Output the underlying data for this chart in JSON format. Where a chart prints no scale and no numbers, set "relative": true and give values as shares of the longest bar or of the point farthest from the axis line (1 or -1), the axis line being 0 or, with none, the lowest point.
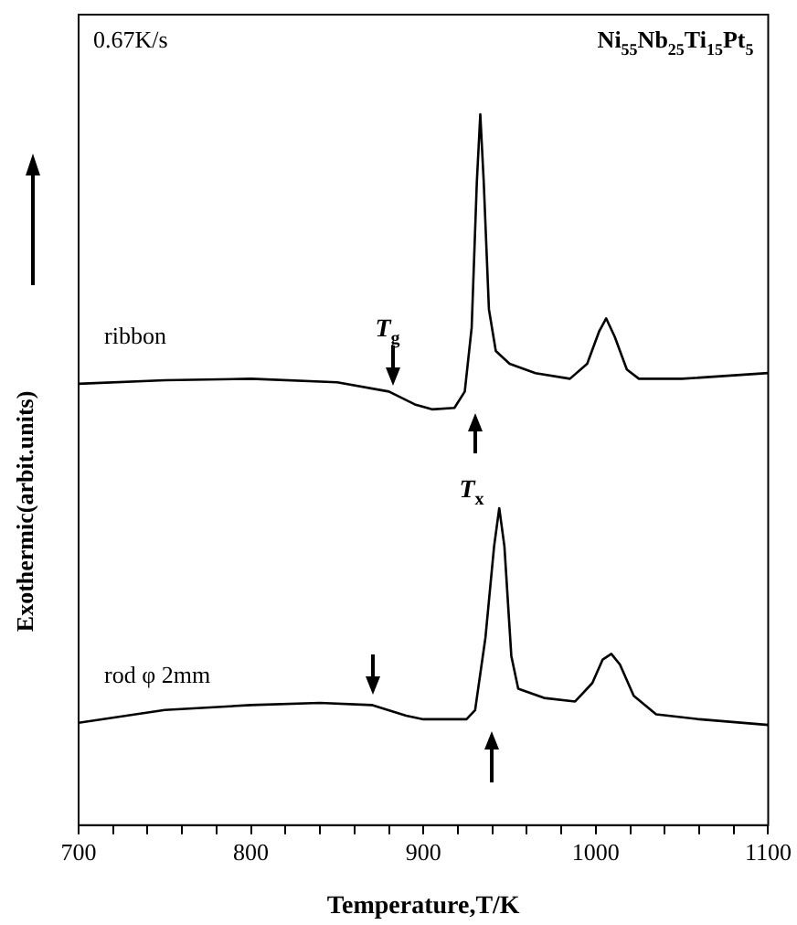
{
  "chart_data": {
    "type": "line",
    "title": "Ni$_{55}$Nb$_{25}$Ti$_{15}$Pt$_{5}$",
    "xlabel": "Temperature,T/K",
    "ylabel": "Exothermic(arbit.units)",
    "relative": true,
    "xlim": [
      700,
      1100
    ],
    "xticks": [
      700,
      {
        "value": 720,
        "label": null
      },
      {
        "value": 740,
        "label": null
      },
      {
        "value": 760,
        "label": null
      },
      {
        "value": 780,
        "label": null
      },
      800,
      {
        "value": 820,
        "label": null
      },
      {
        "value": 840,
        "label": null
      },
      {
        "value": 860,
        "label": null
      },
      {
        "value": 880,
        "label": null
      },
      900,
      {
        "value": 920,
        "label": null
      },
      {
        "value": 940,
        "label": null
      },
      {
        "value": 960,
        "label": null
      },
      {
        "value": 980,
        "label": null
      },
      1000,
      {
        "value": 1020,
        "label": null
      },
      {
        "value": 1040,
        "label": null
      },
      {
        "value": 1060,
        "label": null
      },
      {
        "value": 1080,
        "label": null
      },
      1100
    ],
    "grid": false,
    "legend": false,
    "marker": "none",
    "line_style": "solid",
    "annotations": [
      "0.67K/s",
      "T$_{g}$",
      "T$_{x}$"
    ],
    "series": [
      {
        "name": "ribbon",
        "color": "#000000",
        "x": [
          700,
          750,
          800,
          850,
          880,
          895,
          905,
          918,
          924,
          928,
          931,
          933,
          935,
          938,
          942,
          950,
          965,
          985,
          995,
          1002,
          1006,
          1011,
          1018,
          1025,
          1050,
          1100
        ],
        "values": [
          0.621,
          0.626,
          0.628,
          0.623,
          0.61,
          0.592,
          0.585,
          0.587,
          0.61,
          0.7,
          0.905,
          1,
          0.905,
          0.726,
          0.667,
          0.649,
          0.636,
          0.628,
          0.649,
          0.695,
          0.713,
          0.687,
          0.641,
          0.628,
          0.628,
          0.636
        ]
      },
      {
        "name": "rod φ 2mm",
        "color": "#000000",
        "x": [
          700,
          750,
          800,
          840,
          870,
          890,
          900,
          925,
          930,
          936,
          941,
          944,
          947,
          951,
          955,
          970,
          988,
          998,
          1004,
          1009,
          1014,
          1022,
          1035,
          1060,
          1100
        ],
        "values": [
          0.144,
          0.162,
          0.169,
          0.172,
          0.169,
          0.154,
          0.149,
          0.149,
          0.162,
          0.264,
          0.392,
          0.446,
          0.392,
          0.238,
          0.192,
          0.179,
          0.174,
          0.2,
          0.233,
          0.241,
          0.226,
          0.182,
          0.156,
          0.149,
          0.141
        ]
      }
    ]
  }
}
